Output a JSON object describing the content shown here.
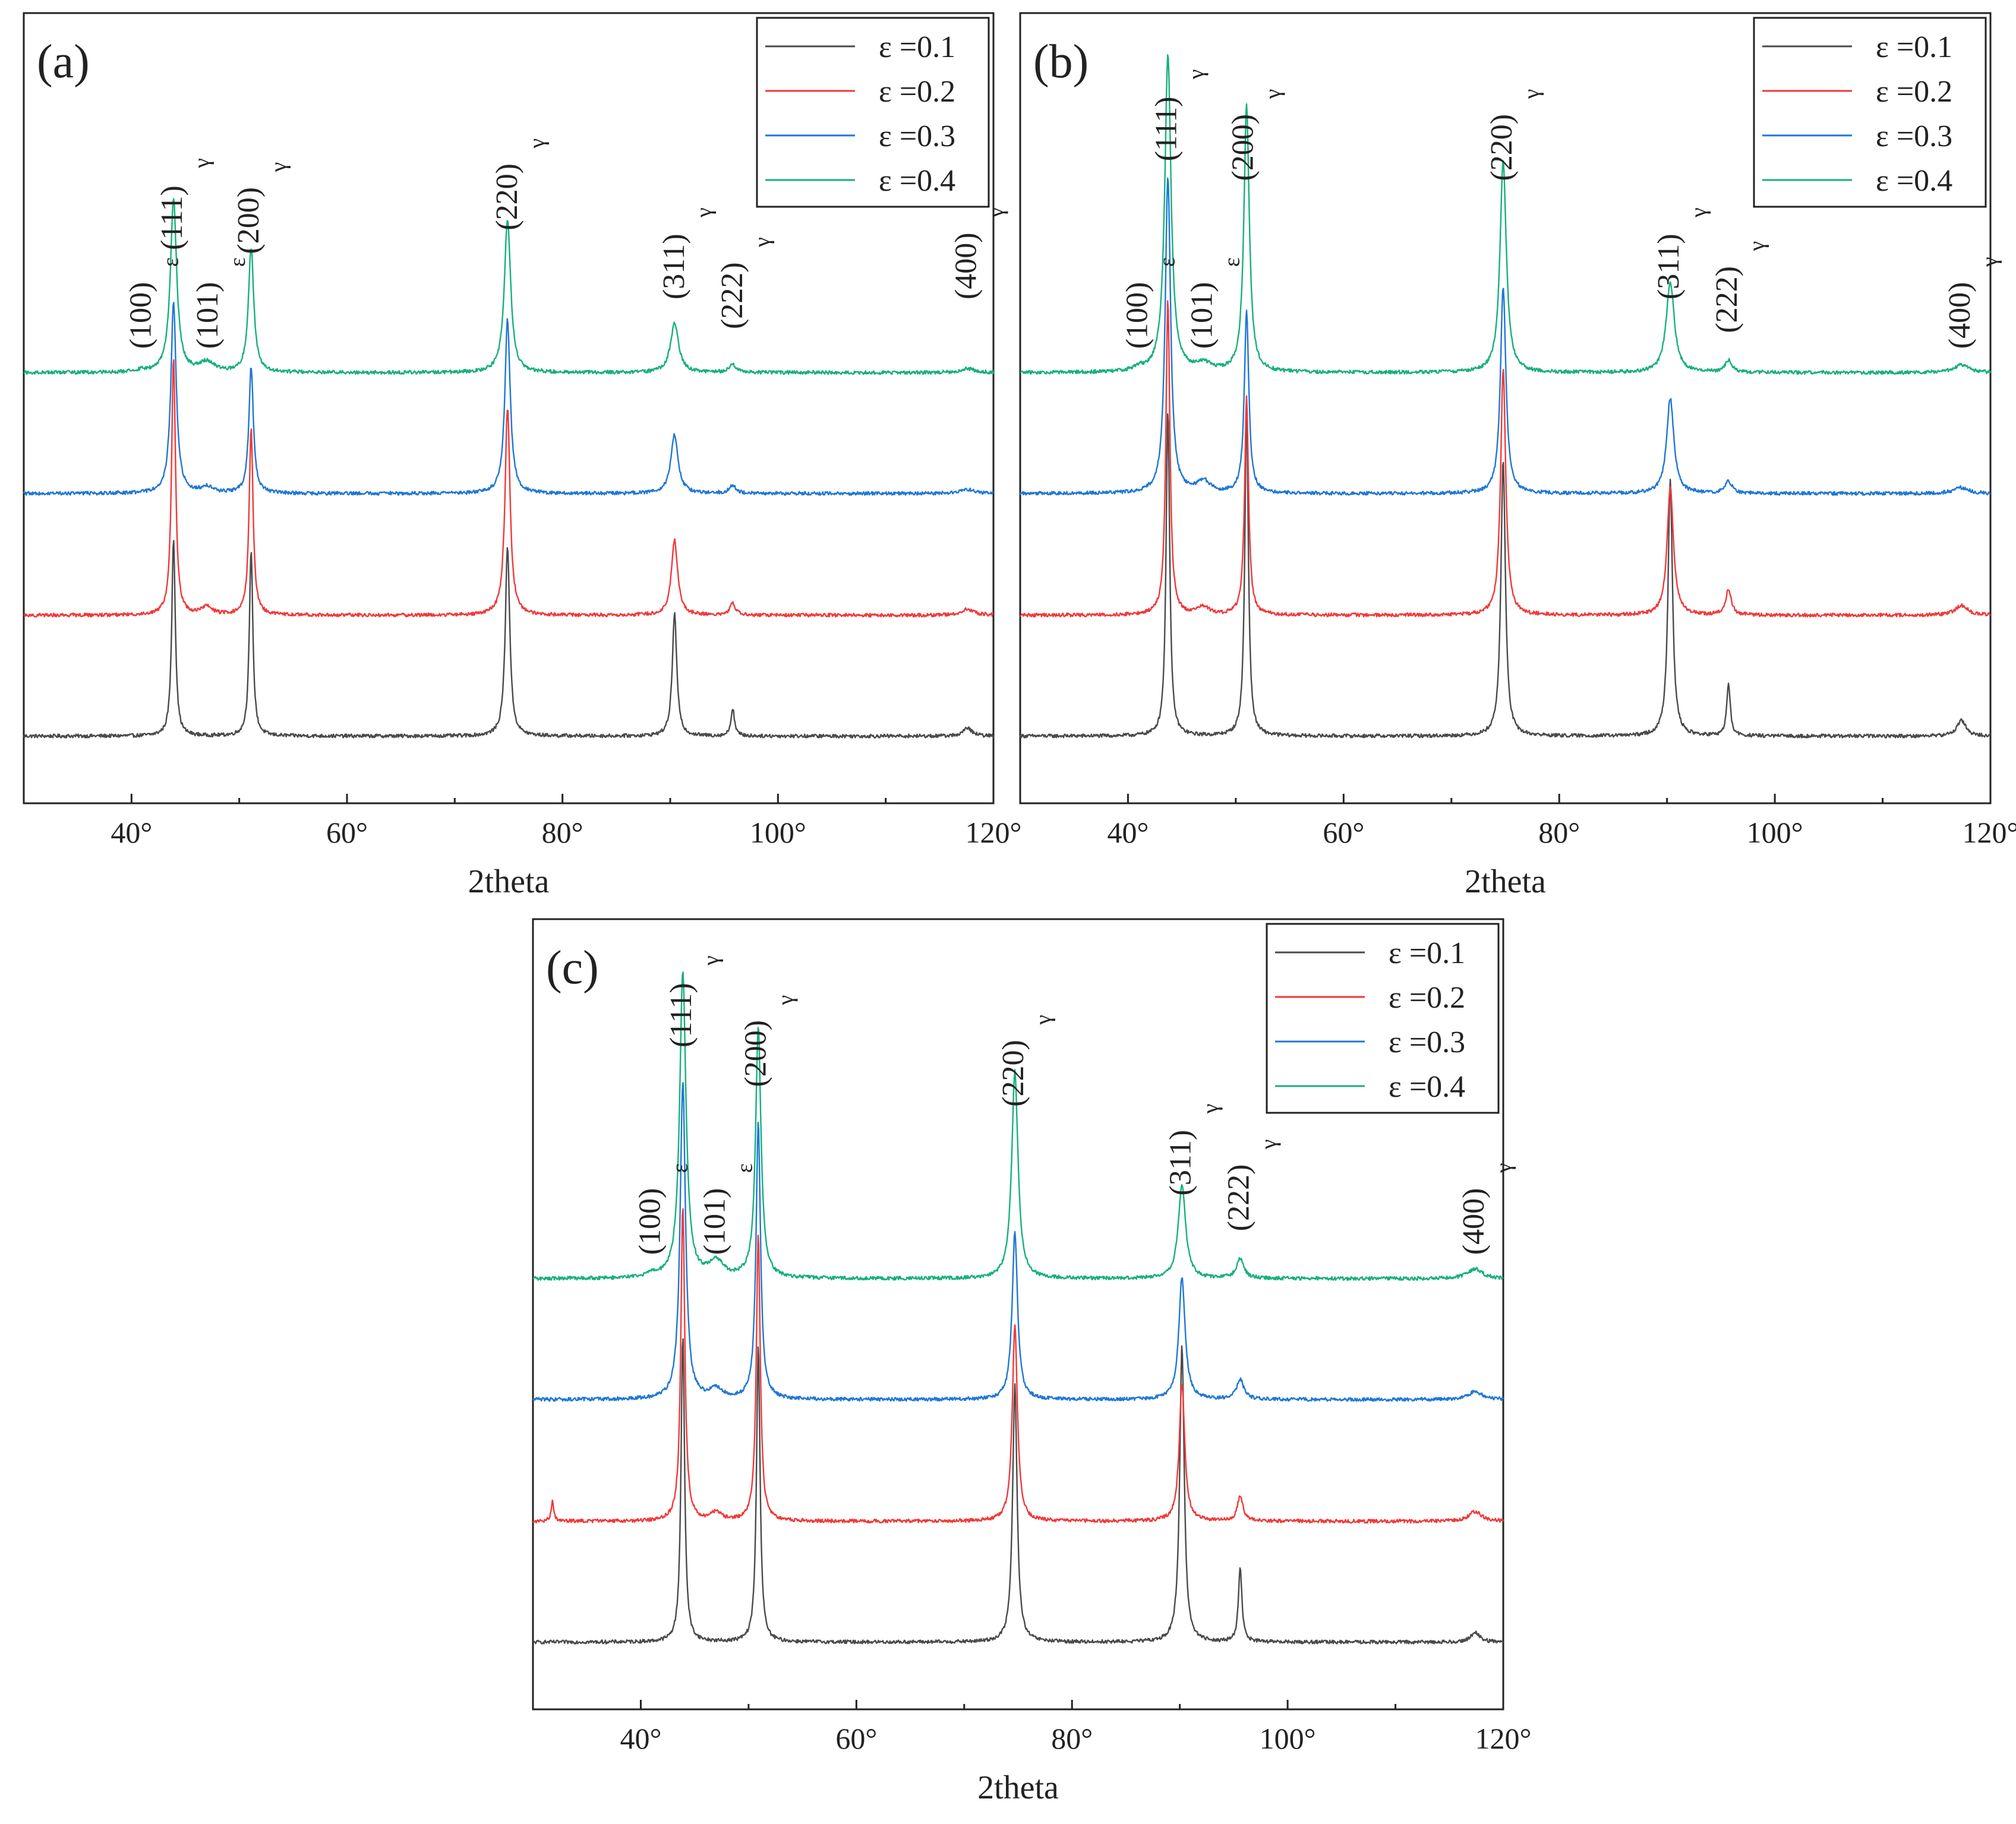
{
  "figure": {
    "series_colors": [
      "#4a4a4a",
      "#ef3a3a",
      "#1f77d4",
      "#17b07a"
    ]
  },
  "chart_data": [
    {
      "type": "line",
      "panel_label": "(a)",
      "xlabel": "2theta",
      "ylabel": "",
      "xlim": [
        30,
        120
      ],
      "x_ticks": [
        "40°",
        "60°",
        "80°",
        "100°",
        "120°"
      ],
      "x_tick_values": [
        40,
        60,
        80,
        100,
        120
      ],
      "grid": false,
      "legend_position": "top-right",
      "series": [
        {
          "name": "ε =0.1",
          "color": "#4a4a4a",
          "offset": 0,
          "peaks": [
            [
              43.9,
              1.0,
              0.2
            ],
            [
              51.1,
              0.93,
              0.2
            ],
            [
              47.0,
              0.0,
              0.5
            ],
            [
              74.9,
              0.96,
              0.25
            ],
            [
              90.4,
              0.62,
              0.25
            ],
            [
              95.8,
              0.14,
              0.2
            ],
            [
              117.6,
              0.04,
              0.5
            ]
          ]
        },
        {
          "name": "ε =0.2",
          "color": "#ef3a3a",
          "offset": 1,
          "peaks": [
            [
              43.9,
              1.3,
              0.22
            ],
            [
              51.1,
              0.94,
              0.22
            ],
            [
              47.0,
              0.04,
              0.6
            ],
            [
              74.9,
              1.05,
              0.28
            ],
            [
              90.4,
              0.38,
              0.35
            ],
            [
              95.8,
              0.06,
              0.3
            ],
            [
              117.6,
              0.03,
              0.7
            ]
          ]
        },
        {
          "name": "ε =0.3",
          "color": "#1f77d4",
          "offset": 2,
          "peaks": [
            [
              43.9,
              0.96,
              0.3
            ],
            [
              51.1,
              0.64,
              0.25
            ],
            [
              47.0,
              0.03,
              0.7
            ],
            [
              74.9,
              0.88,
              0.3
            ],
            [
              90.4,
              0.3,
              0.4
            ],
            [
              95.8,
              0.04,
              0.4
            ],
            [
              117.6,
              0.02,
              0.8
            ]
          ]
        },
        {
          "name": "ε =0.4",
          "color": "#17b07a",
          "offset": 3,
          "peaks": [
            [
              43.9,
              0.88,
              0.35
            ],
            [
              51.1,
              0.63,
              0.3
            ],
            [
              47.0,
              0.05,
              0.8
            ],
            [
              74.9,
              0.78,
              0.35
            ],
            [
              90.4,
              0.25,
              0.45
            ],
            [
              95.8,
              0.04,
              0.4
            ],
            [
              117.6,
              0.02,
              0.8
            ],
            [
              41.0,
              0.01,
              0.5
            ]
          ]
        }
      ],
      "peak_labels": [
        {
          "label": "(100)",
          "sub": "ε",
          "x": 41.0,
          "level": 0.0
        },
        {
          "label": "(111)",
          "sub": "γ",
          "x": 43.9,
          "level": 0.5
        },
        {
          "label": "(101)",
          "sub": "ε",
          "x": 47.2,
          "level": 0.0
        },
        {
          "label": "(200)",
          "sub": "γ",
          "x": 51.0,
          "level": 0.48
        },
        {
          "label": "(220)",
          "sub": "γ",
          "x": 75.0,
          "level": 0.6
        },
        {
          "label": "(311)",
          "sub": "γ",
          "x": 90.5,
          "level": 0.25
        },
        {
          "label": "(222)",
          "sub": "γ",
          "x": 95.9,
          "level": 0.1
        },
        {
          "label": "(400)",
          "sub": "γ",
          "x": 117.6,
          "level": 0.25
        }
      ]
    },
    {
      "type": "line",
      "panel_label": "(b)",
      "xlabel": "2theta",
      "ylabel": "",
      "xlim": [
        30,
        120
      ],
      "x_ticks": [
        "40°",
        "60°",
        "80°",
        "100°",
        "120°"
      ],
      "x_tick_values": [
        40,
        60,
        80,
        100,
        120
      ],
      "grid": false,
      "legend_position": "top-right",
      "series": [
        {
          "name": "ε =0.1",
          "color": "#4a4a4a",
          "offset": 0,
          "peaks": [
            [
              43.7,
              1.65,
              0.2
            ],
            [
              51.0,
              1.65,
              0.2
            ],
            [
              74.8,
              1.4,
              0.25
            ],
            [
              90.3,
              1.3,
              0.25
            ],
            [
              95.7,
              0.26,
              0.2
            ],
            [
              117.3,
              0.08,
              0.5
            ]
          ]
        },
        {
          "name": "ε =0.2",
          "color": "#ef3a3a",
          "offset": 1,
          "peaks": [
            [
              43.7,
              1.6,
              0.22
            ],
            [
              51.0,
              1.1,
              0.22
            ],
            [
              47.0,
              0.04,
              0.6
            ],
            [
              74.8,
              1.25,
              0.28
            ],
            [
              90.3,
              0.65,
              0.35
            ],
            [
              95.7,
              0.13,
              0.3
            ],
            [
              117.3,
              0.05,
              0.7
            ]
          ]
        },
        {
          "name": "ε =0.3",
          "color": "#1f77d4",
          "offset": 2,
          "peaks": [
            [
              43.7,
              1.6,
              0.3
            ],
            [
              51.0,
              0.92,
              0.25
            ],
            [
              47.0,
              0.06,
              0.7
            ],
            [
              74.8,
              1.05,
              0.3
            ],
            [
              90.3,
              0.48,
              0.4
            ],
            [
              95.7,
              0.06,
              0.4
            ],
            [
              117.3,
              0.03,
              0.8
            ]
          ]
        },
        {
          "name": "ε =0.4",
          "color": "#17b07a",
          "offset": 3,
          "peaks": [
            [
              43.7,
              1.6,
              0.35
            ],
            [
              51.0,
              1.35,
              0.3
            ],
            [
              47.0,
              0.04,
              0.8
            ],
            [
              74.8,
              1.07,
              0.35
            ],
            [
              90.3,
              0.46,
              0.45
            ],
            [
              95.7,
              0.06,
              0.4
            ],
            [
              117.3,
              0.04,
              0.8
            ],
            [
              41.0,
              0.02,
              0.5
            ]
          ]
        }
      ],
      "peak_labels": [
        {
          "label": "(100)",
          "sub": "ε",
          "x": 41.0,
          "level": 0.0
        },
        {
          "label": "(111)",
          "sub": "γ",
          "x": 43.7,
          "level": 0.95
        },
        {
          "label": "(101)",
          "sub": "ε",
          "x": 47.0,
          "level": 0.0
        },
        {
          "label": "(200)",
          "sub": "γ",
          "x": 50.8,
          "level": 0.85
        },
        {
          "label": "(220)",
          "sub": "γ",
          "x": 74.8,
          "level": 0.85
        },
        {
          "label": "(311)",
          "sub": "γ",
          "x": 90.3,
          "level": 0.25
        },
        {
          "label": "(222)",
          "sub": "γ",
          "x": 95.7,
          "level": 0.08
        },
        {
          "label": "(400)",
          "sub": "γ",
          "x": 117.3,
          "level": 0.0
        }
      ]
    },
    {
      "type": "line",
      "panel_label": "(c)",
      "xlabel": "2theta",
      "ylabel": "",
      "xlim": [
        30,
        120
      ],
      "x_ticks": [
        "40°",
        "60°",
        "80°",
        "100°",
        "120°"
      ],
      "x_tick_values": [
        40,
        60,
        80,
        100,
        120
      ],
      "grid": false,
      "legend_position": "top-right",
      "series": [
        {
          "name": "ε =0.1",
          "color": "#4a4a4a",
          "offset": 0,
          "peaks": [
            [
              43.9,
              1.55,
              0.2
            ],
            [
              50.9,
              1.5,
              0.2
            ],
            [
              74.7,
              1.3,
              0.25
            ],
            [
              90.2,
              1.5,
              0.25
            ],
            [
              95.6,
              0.37,
              0.2
            ],
            [
              117.4,
              0.05,
              0.5
            ]
          ]
        },
        {
          "name": "ε =0.2",
          "color": "#ef3a3a",
          "offset": 1,
          "peaks": [
            [
              43.9,
              1.6,
              0.22
            ],
            [
              50.9,
              1.45,
              0.22
            ],
            [
              31.8,
              0.1,
              0.15
            ],
            [
              47.0,
              0.04,
              0.6
            ],
            [
              74.7,
              1.0,
              0.28
            ],
            [
              90.2,
              0.7,
              0.3
            ],
            [
              95.6,
              0.13,
              0.3
            ],
            [
              117.4,
              0.05,
              0.7
            ]
          ]
        },
        {
          "name": "ε =0.3",
          "color": "#1f77d4",
          "offset": 2,
          "peaks": [
            [
              43.9,
              1.6,
              0.3
            ],
            [
              50.9,
              1.4,
              0.25
            ],
            [
              47.0,
              0.05,
              0.7
            ],
            [
              74.7,
              0.85,
              0.3
            ],
            [
              90.2,
              0.62,
              0.35
            ],
            [
              95.6,
              0.1,
              0.4
            ],
            [
              117.4,
              0.04,
              0.8
            ]
          ]
        },
        {
          "name": "ε =0.4",
          "color": "#17b07a",
          "offset": 3,
          "peaks": [
            [
              43.9,
              1.55,
              0.35
            ],
            [
              50.9,
              1.27,
              0.3
            ],
            [
              47.0,
              0.08,
              0.8
            ],
            [
              74.7,
              1.05,
              0.35
            ],
            [
              90.2,
              0.48,
              0.4
            ],
            [
              95.6,
              0.1,
              0.4
            ],
            [
              117.4,
              0.05,
              0.8
            ],
            [
              41.0,
              0.02,
              0.5
            ]
          ]
        }
      ],
      "peak_labels": [
        {
          "label": "(100)",
          "sub": "ε",
          "x": 41.0,
          "level": 0.0
        },
        {
          "label": "(111)",
          "sub": "γ",
          "x": 43.9,
          "level": 1.05
        },
        {
          "label": "(101)",
          "sub": "ε",
          "x": 47.0,
          "level": 0.0
        },
        {
          "label": "(200)",
          "sub": "γ",
          "x": 50.8,
          "level": 0.85
        },
        {
          "label": "(220)",
          "sub": "γ",
          "x": 74.7,
          "level": 0.75
        },
        {
          "label": "(311)",
          "sub": "γ",
          "x": 90.2,
          "level": 0.3
        },
        {
          "label": "(222)",
          "sub": "γ",
          "x": 95.6,
          "level": 0.12
        },
        {
          "label": "(400)",
          "sub": "γ",
          "x": 117.4,
          "level": 0.0
        }
      ]
    }
  ]
}
